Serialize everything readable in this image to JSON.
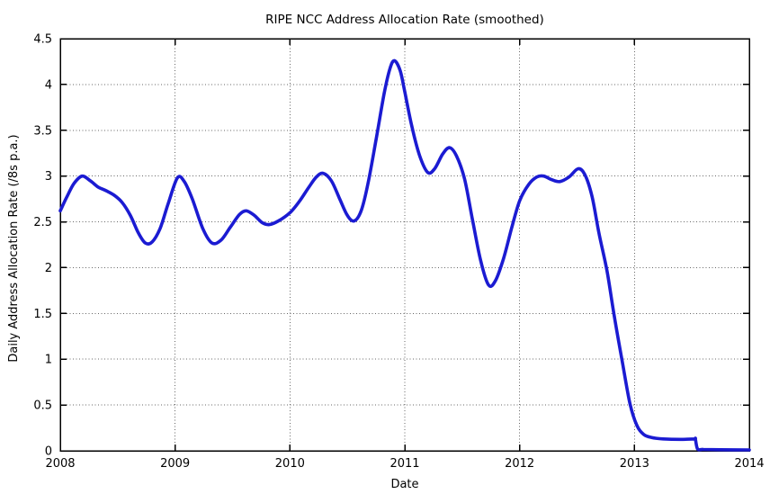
{
  "chart_data": {
    "type": "line",
    "title": "RIPE NCC Address Allocation Rate (smoothed)",
    "xlabel": "Date",
    "ylabel": "Daily Address Allocation Rate (/8s p.a.)",
    "xlim": [
      2008,
      2014
    ],
    "ylim": [
      0,
      4.5
    ],
    "xticks": [
      2008,
      2009,
      2010,
      2011,
      2012,
      2013,
      2014
    ],
    "yticks": [
      0,
      0.5,
      1,
      1.5,
      2,
      2.5,
      3,
      3.5,
      4,
      4.5
    ],
    "grid": true,
    "legend": "none",
    "line_color": "#1b1bd2",
    "grid_color": "#666666",
    "border_color": "#000000",
    "background_color": "#ffffff",
    "series": [
      {
        "name": "allocation-rate-smoothed",
        "points": [
          [
            2008.0,
            2.62
          ],
          [
            2008.06,
            2.78
          ],
          [
            2008.12,
            2.92
          ],
          [
            2008.19,
            3.0
          ],
          [
            2008.26,
            2.95
          ],
          [
            2008.33,
            2.88
          ],
          [
            2008.4,
            2.84
          ],
          [
            2008.47,
            2.79
          ],
          [
            2008.54,
            2.71
          ],
          [
            2008.61,
            2.57
          ],
          [
            2008.68,
            2.38
          ],
          [
            2008.74,
            2.27
          ],
          [
            2008.8,
            2.28
          ],
          [
            2008.87,
            2.43
          ],
          [
            2008.94,
            2.7
          ],
          [
            2009.02,
            2.98
          ],
          [
            2009.08,
            2.94
          ],
          [
            2009.15,
            2.75
          ],
          [
            2009.24,
            2.43
          ],
          [
            2009.32,
            2.27
          ],
          [
            2009.4,
            2.3
          ],
          [
            2009.48,
            2.44
          ],
          [
            2009.56,
            2.58
          ],
          [
            2009.62,
            2.62
          ],
          [
            2009.69,
            2.57
          ],
          [
            2009.76,
            2.49
          ],
          [
            2009.82,
            2.47
          ],
          [
            2009.9,
            2.51
          ],
          [
            2010.0,
            2.6
          ],
          [
            2010.08,
            2.72
          ],
          [
            2010.16,
            2.87
          ],
          [
            2010.23,
            2.99
          ],
          [
            2010.29,
            3.03
          ],
          [
            2010.36,
            2.95
          ],
          [
            2010.43,
            2.76
          ],
          [
            2010.5,
            2.57
          ],
          [
            2010.56,
            2.51
          ],
          [
            2010.62,
            2.62
          ],
          [
            2010.68,
            2.92
          ],
          [
            2010.75,
            3.4
          ],
          [
            2010.82,
            3.9
          ],
          [
            2010.87,
            4.17
          ],
          [
            2010.91,
            4.26
          ],
          [
            2010.96,
            4.15
          ],
          [
            2011.0,
            3.92
          ],
          [
            2011.06,
            3.55
          ],
          [
            2011.13,
            3.22
          ],
          [
            2011.2,
            3.04
          ],
          [
            2011.26,
            3.08
          ],
          [
            2011.33,
            3.24
          ],
          [
            2011.39,
            3.31
          ],
          [
            2011.45,
            3.22
          ],
          [
            2011.52,
            2.97
          ],
          [
            2011.59,
            2.52
          ],
          [
            2011.66,
            2.08
          ],
          [
            2011.73,
            1.81
          ],
          [
            2011.79,
            1.86
          ],
          [
            2011.86,
            2.1
          ],
          [
            2011.93,
            2.43
          ],
          [
            2012.0,
            2.73
          ],
          [
            2012.08,
            2.91
          ],
          [
            2012.15,
            2.99
          ],
          [
            2012.21,
            3.0
          ],
          [
            2012.28,
            2.96
          ],
          [
            2012.35,
            2.94
          ],
          [
            2012.43,
            2.99
          ],
          [
            2012.51,
            3.08
          ],
          [
            2012.57,
            3.01
          ],
          [
            2012.63,
            2.78
          ],
          [
            2012.69,
            2.38
          ],
          [
            2012.76,
            1.97
          ],
          [
            2012.82,
            1.5
          ],
          [
            2012.89,
            1.0
          ],
          [
            2012.96,
            0.52
          ],
          [
            2013.02,
            0.28
          ],
          [
            2013.08,
            0.18
          ],
          [
            2013.15,
            0.145
          ],
          [
            2013.25,
            0.13
          ],
          [
            2013.4,
            0.125
          ],
          [
            2013.52,
            0.13
          ],
          [
            2013.53,
            0.13
          ],
          [
            2013.55,
            0.02
          ],
          [
            2013.6,
            0.015
          ],
          [
            2013.75,
            0.012
          ],
          [
            2014.0,
            0.01
          ]
        ]
      }
    ]
  }
}
